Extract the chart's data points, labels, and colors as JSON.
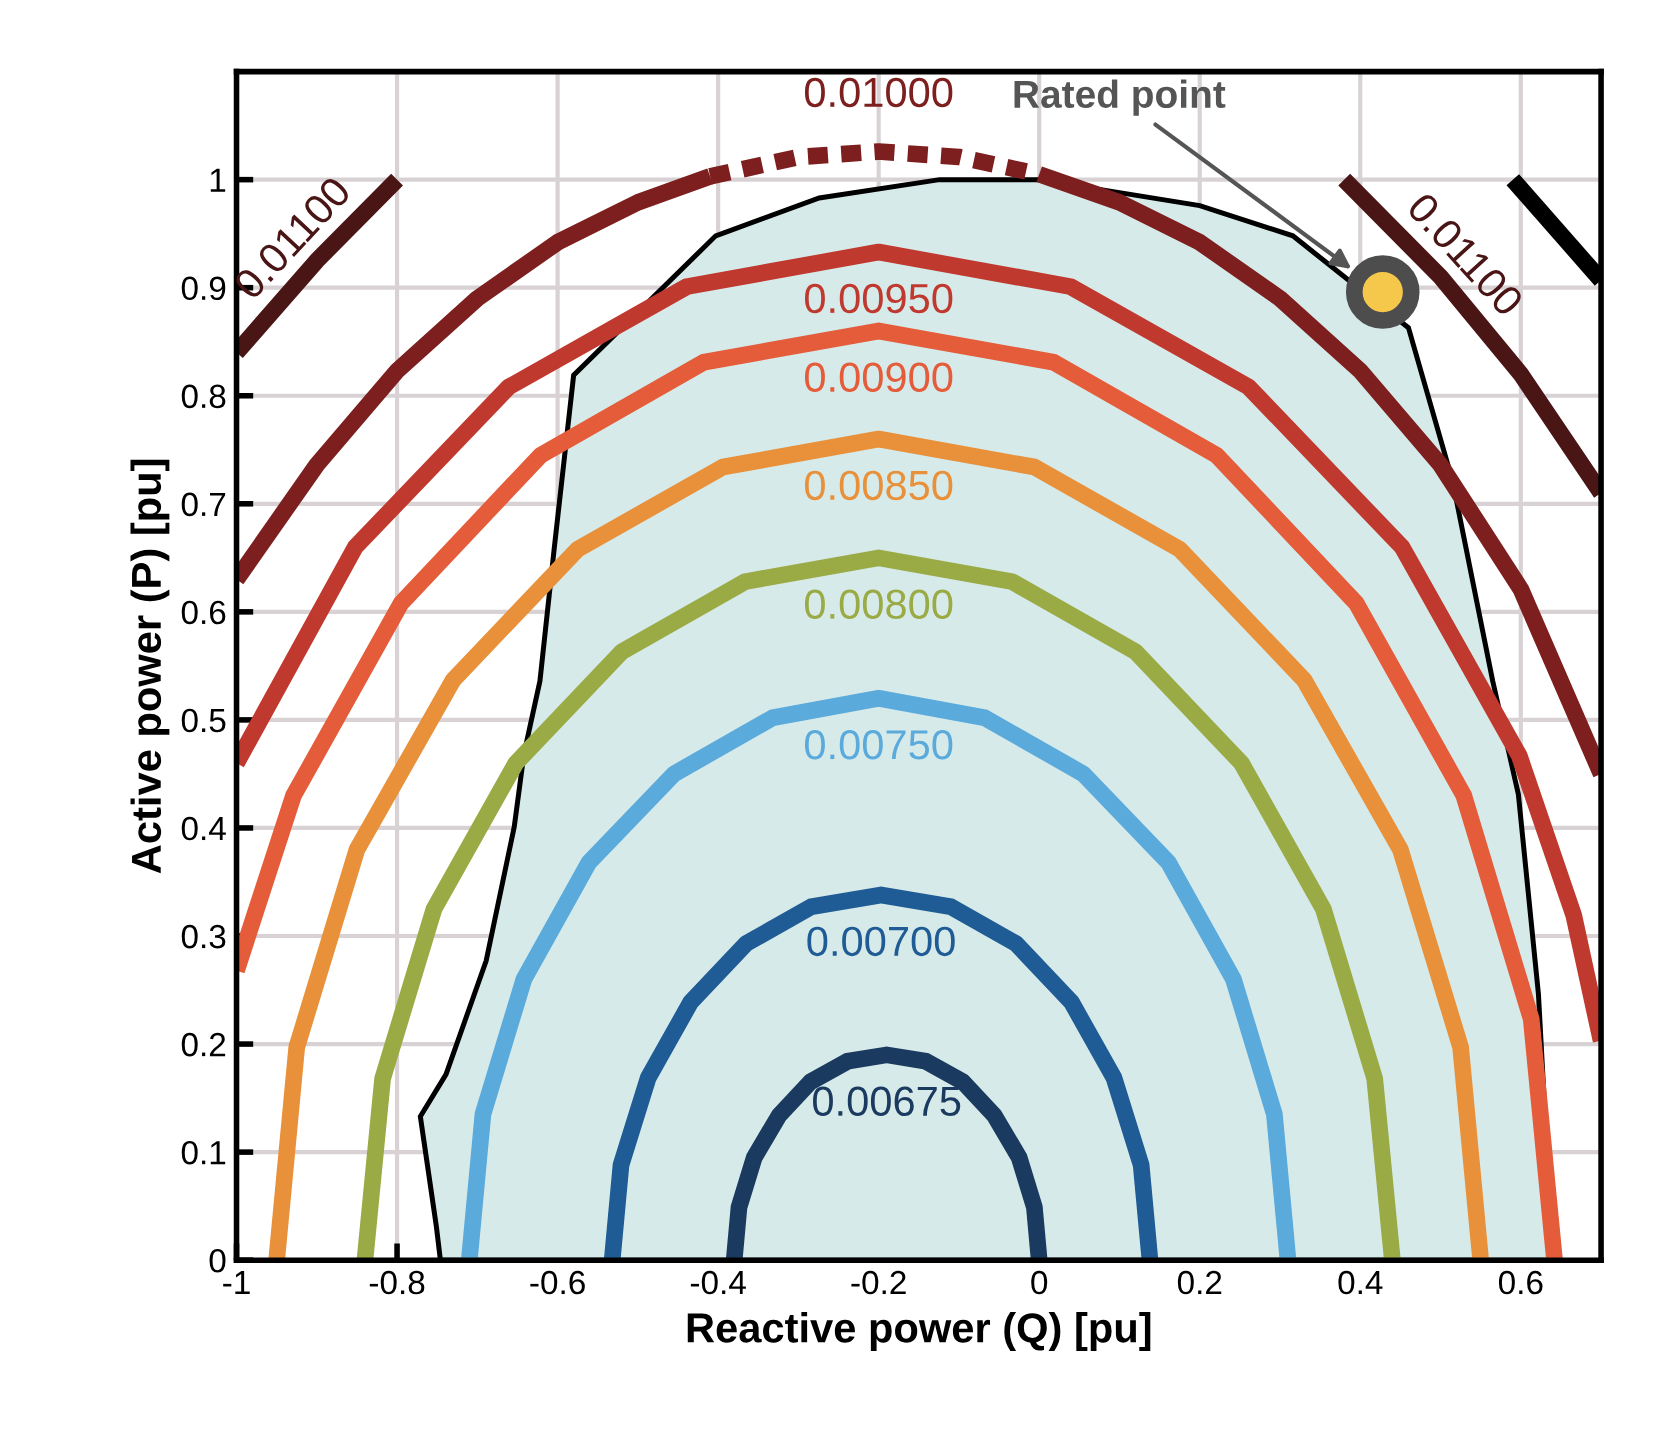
{
  "chart_data": {
    "type": "line",
    "xlabel": "Reactive power (Q) [pu]",
    "ylabel": "Active power (P) [pu]",
    "xlim": [
      -1,
      0.7
    ],
    "ylim": [
      0,
      1.1
    ],
    "xticks": [
      -1,
      -0.8,
      -0.6,
      -0.4,
      -0.2,
      0,
      0.2,
      0.4,
      0.6
    ],
    "yticks": [
      0,
      0.1,
      0.2,
      0.3,
      0.4,
      0.5,
      0.6,
      0.7,
      0.8,
      0.9,
      1
    ],
    "grid": true,
    "legend": false,
    "series": [
      {
        "type": "area",
        "color": "#d7eaea",
        "x": [
          -0.746,
          -0.751,
          -0.771,
          -0.739,
          -0.689,
          -0.654,
          -0.642,
          -0.622,
          -0.604,
          -0.58,
          -0.403,
          -0.274,
          -0.124,
          0.0,
          0.2,
          0.316,
          0.46,
          0.515,
          0.565,
          0.597,
          0.622,
          0.639,
          0.64
        ],
        "values": [
          0,
          0.031,
          0.133,
          0.172,
          0.277,
          0.401,
          0.468,
          0.536,
          0.66,
          0.819,
          0.948,
          0.983,
          1.0,
          1.0,
          0.976,
          0.948,
          0.863,
          0.721,
          0.536,
          0.431,
          0.246,
          0.013,
          0
        ]
      },
      {
        "name": "0.00675",
        "color": "#1b3a5f",
        "x": [
          -0.38,
          -0.374,
          -0.355,
          -0.324,
          -0.285,
          -0.239,
          -0.19,
          -0.141,
          -0.095,
          -0.056,
          -0.025,
          -0.006,
          0.0
        ],
        "values": [
          0,
          0.049,
          0.095,
          0.134,
          0.165,
          0.184,
          0.19,
          0.184,
          0.165,
          0.134,
          0.095,
          0.049,
          0
        ]
      },
      {
        "name": "0.00700",
        "color": "#1f5b94",
        "x": [
          -0.532,
          -0.521,
          -0.487,
          -0.434,
          -0.365,
          -0.284,
          -0.197,
          -0.11,
          -0.029,
          0.04,
          0.093,
          0.127,
          0.138
        ],
        "values": [
          0,
          0.088,
          0.169,
          0.239,
          0.293,
          0.327,
          0.338,
          0.327,
          0.293,
          0.239,
          0.169,
          0.088,
          0
        ]
      },
      {
        "name": "0.00750",
        "color": "#5aaadc",
        "x": [
          -0.71,
          -0.693,
          -0.642,
          -0.561,
          -0.455,
          -0.332,
          -0.2,
          -0.068,
          0.055,
          0.161,
          0.242,
          0.293,
          0.31
        ],
        "values": [
          0,
          0.135,
          0.26,
          0.368,
          0.45,
          0.502,
          0.52,
          0.502,
          0.45,
          0.368,
          0.26,
          0.135,
          0
        ]
      },
      {
        "name": "0.00800",
        "color": "#9aab45",
        "x": [
          -0.84,
          -0.818,
          -0.754,
          -0.652,
          -0.52,
          -0.366,
          -0.2,
          -0.034,
          0.12,
          0.252,
          0.354,
          0.418,
          0.44
        ],
        "values": [
          0,
          0.168,
          0.325,
          0.46,
          0.563,
          0.628,
          0.65,
          0.628,
          0.563,
          0.46,
          0.325,
          0.168,
          0
        ]
      },
      {
        "name": "0.00850",
        "color": "#e8913a",
        "x": [
          -0.95,
          -0.925,
          -0.85,
          -0.73,
          -0.575,
          -0.394,
          -0.2,
          -0.006,
          0.175,
          0.33,
          0.45,
          0.525,
          0.55
        ],
        "values": [
          0,
          0.197,
          0.38,
          0.537,
          0.658,
          0.734,
          0.76,
          0.734,
          0.658,
          0.537,
          0.38,
          0.197,
          0
        ]
      },
      {
        "name": "0.00900",
        "color": "#e45c3a",
        "x": [
          -1,
          -0.929,
          -0.795,
          -0.621,
          -0.418,
          -0.2,
          0.018,
          0.221,
          0.395,
          0.529,
          0.613,
          0.642
        ],
        "values": [
          0.268,
          0.43,
          0.608,
          0.745,
          0.831,
          0.86,
          0.831,
          0.745,
          0.608,
          0.43,
          0.223,
          0
        ]
      },
      {
        "name": "0.00950",
        "color": "#c0392f",
        "x": [
          -1,
          -0.852,
          -0.661,
          -0.439,
          -0.2,
          0.039,
          0.261,
          0.452,
          0.598,
          0.666,
          0.7
        ],
        "values": [
          0.46,
          0.66,
          0.808,
          0.901,
          0.933,
          0.901,
          0.808,
          0.66,
          0.467,
          0.319,
          0.203
        ]
      },
      {
        "color": "#7d1f1e",
        "x": [
          -1,
          -0.9,
          -0.8,
          -0.7,
          -0.6,
          -0.5,
          -0.41
        ],
        "values": [
          0.63,
          0.736,
          0.823,
          0.89,
          0.942,
          0.979,
          1.003
        ]
      },
      {
        "name": "0.01000",
        "color": "#7d1f1e",
        "line_style": "dotted",
        "x": [
          -0.41,
          -0.3,
          -0.2,
          -0.1,
          0.0
        ],
        "values": [
          1.003,
          1.021,
          1.026,
          1.021,
          1.005
        ]
      },
      {
        "color": "#7d1f1e",
        "x": [
          0.0,
          0.1,
          0.2,
          0.3,
          0.4,
          0.5,
          0.6,
          0.7
        ],
        "values": [
          1.005,
          0.979,
          0.942,
          0.89,
          0.823,
          0.736,
          0.621,
          0.45
        ]
      },
      {
        "name": "0.01100",
        "color": "#4a1515",
        "x": [
          -1,
          -0.9,
          -0.8
        ],
        "values": [
          0.84,
          0.925,
          1.0
        ]
      },
      {
        "name": "0.01100",
        "color": "#4a1515",
        "x": [
          0.38,
          0.5,
          0.6,
          0.7
        ],
        "values": [
          1.0,
          0.91,
          0.82,
          0.71
        ]
      },
      {
        "color": "#000000",
        "x": [
          0.59,
          0.7
        ],
        "values": [
          1.0,
          0.907
        ]
      },
      {
        "type": "scatter",
        "name": "Rated point",
        "color": "#f5c84b",
        "marker": "circle",
        "x": [
          0.428
        ],
        "values": [
          0.896
        ]
      }
    ]
  }
}
